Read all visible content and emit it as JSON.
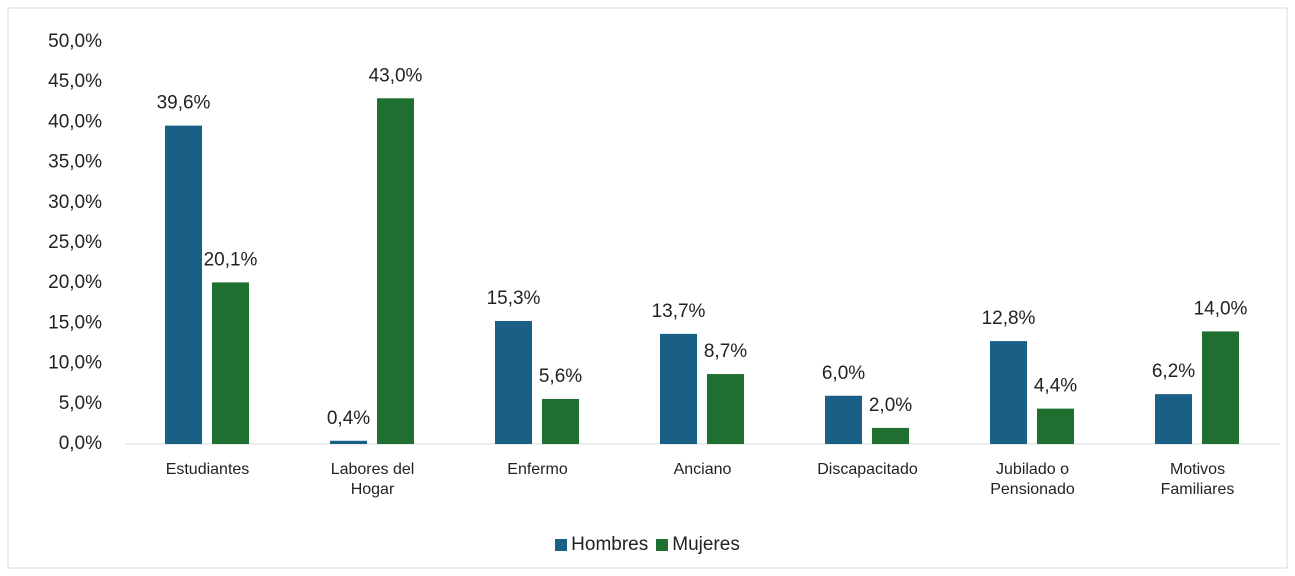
{
  "chart_data": {
    "type": "bar",
    "categories": [
      "Estudiantes",
      "Labores del Hogar",
      "Enfermo",
      "Anciano",
      "Discapacitado",
      "Jubilado o Pensionado",
      "Motivos Familiares"
    ],
    "series": [
      {
        "name": "Hombres",
        "color": "#1a5f85",
        "values": [
          39.6,
          0.4,
          15.3,
          13.7,
          6.0,
          12.8,
          6.2
        ],
        "value_labels": [
          "39,6%",
          "0,4%",
          "15,3%",
          "13,7%",
          "6,0%",
          "12,8%",
          "6,2%"
        ]
      },
      {
        "name": "Mujeres",
        "color": "#1e6f30",
        "values": [
          20.1,
          43.0,
          5.6,
          8.7,
          2.0,
          4.4,
          14.0
        ],
        "value_labels": [
          "20,1%",
          "43,0%",
          "5,6%",
          "8,7%",
          "2,0%",
          "4,4%",
          "14,0%"
        ]
      }
    ],
    "ylim": [
      0,
      50
    ],
    "yticks": [
      {
        "value": 0,
        "label": "0,0%"
      },
      {
        "value": 5,
        "label": "5,0%"
      },
      {
        "value": 10,
        "label": "10,0%"
      },
      {
        "value": 15,
        "label": "15,0%"
      },
      {
        "value": 20,
        "label": "20,0%"
      },
      {
        "value": 25,
        "label": "25,0%"
      },
      {
        "value": 30,
        "label": "30,0%"
      },
      {
        "value": 35,
        "label": "35,0%"
      },
      {
        "value": 40,
        "label": "40,0%"
      },
      {
        "value": 45,
        "label": "45,0%"
      },
      {
        "value": 50,
        "label": "50,0%"
      }
    ],
    "legend": "bottom"
  }
}
